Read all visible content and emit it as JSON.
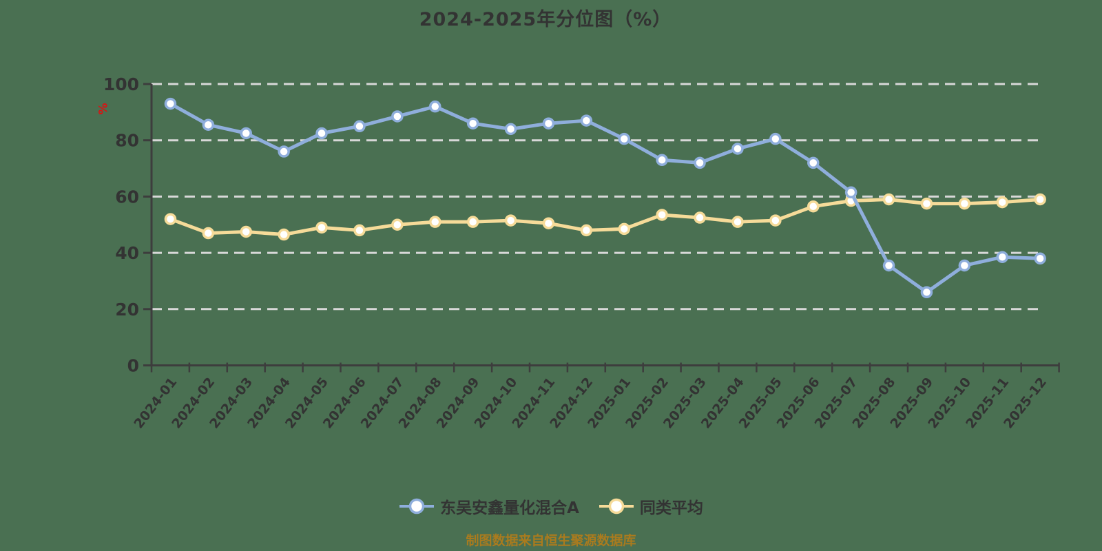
{
  "page": {
    "background_color": "#4A7052"
  },
  "title": {
    "text": "2024-2025年分位图（%）",
    "color": "#333333"
  },
  "caption": {
    "text": "制图数据来自恒生聚源数据库",
    "color": "#AA7B1E"
  },
  "legend": {
    "items": [
      {
        "label": "东吴安鑫量化混合A",
        "color": "#8FAEDC"
      },
      {
        "label": "同类平均",
        "color": "#F6DB99"
      }
    ]
  },
  "chart_data": {
    "type": "line",
    "title": "2024-2025年分位图（%）",
    "ylabel": "%",
    "ylabel_color": "#DD1111",
    "ylim": [
      0,
      100
    ],
    "yticks": [
      0,
      20,
      40,
      60,
      80,
      100
    ],
    "grid": "horizontal dashed gridlines at each y tick",
    "legend_position": "bottom",
    "axis_color": "#3D3D3D",
    "tick_label_color": "#333333",
    "gridline_color": "#D8D8D8",
    "marker_fill": "#FFFFFF",
    "categories": [
      "2024-01",
      "2024-02",
      "2024-03",
      "2024-04",
      "2024-05",
      "2024-06",
      "2024-07",
      "2024-08",
      "2024-09",
      "2024-10",
      "2024-11",
      "2024-12",
      "2025-01",
      "2025-02",
      "2025-03",
      "2025-04",
      "2025-05",
      "2025-06",
      "2025-07",
      "2025-08",
      "2025-09",
      "2025-10",
      "2025-11",
      "2025-12"
    ],
    "series": [
      {
        "name": "东吴安鑫量化混合A",
        "color": "#8FAEDC",
        "values": [
          93,
          85.5,
          82.5,
          76,
          82.5,
          85,
          88.5,
          92,
          86,
          84,
          86,
          87,
          80.5,
          73,
          72,
          77,
          80.5,
          72,
          61.5,
          35.5,
          26,
          35.5,
          38.5,
          38
        ]
      },
      {
        "name": "同类平均",
        "color": "#F6DB99",
        "values": [
          52,
          47,
          47.5,
          46.5,
          49,
          48,
          50,
          51,
          51,
          51.5,
          50.5,
          48,
          48.5,
          53.5,
          52.5,
          51,
          51.5,
          56.5,
          58.5,
          59,
          57.5,
          57.5,
          58,
          59
        ]
      }
    ]
  }
}
